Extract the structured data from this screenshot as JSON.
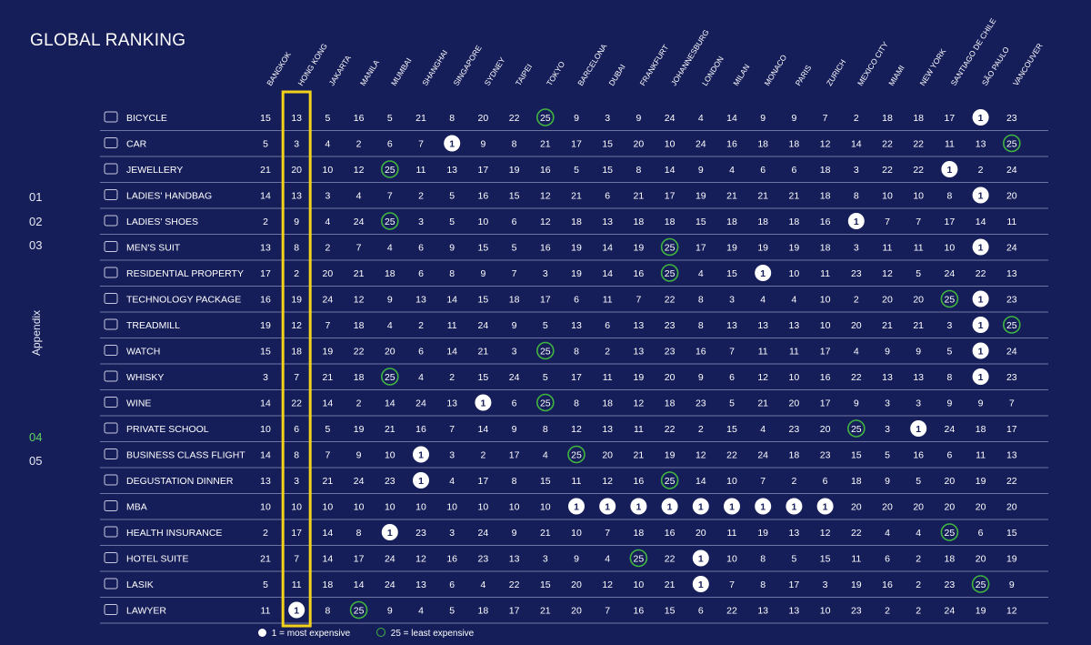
{
  "title": "GLOBAL RANKING",
  "side_nav": [
    {
      "label": "01",
      "active": false
    },
    {
      "label": "02",
      "active": false
    },
    {
      "label": "03",
      "active": false
    },
    {
      "label": "04",
      "active": true
    },
    {
      "label": "05",
      "active": false
    }
  ],
  "appendix_label": "Appendix",
  "colors": {
    "background": "#161e5a",
    "highlight": "#f2d11a",
    "least": "#3fb43f",
    "most": "#ffffff"
  },
  "legend": {
    "most": "1 = most expensive",
    "least": "25 = least expensive"
  },
  "chart_data": {
    "type": "table",
    "highlight_column": "HONG KONG",
    "columns": [
      "BANGKOK",
      "HONG KONG",
      "JAKARTA",
      "MANILA",
      "MUMBAI",
      "SHANGHAI",
      "SINGAPORE",
      "SYDNEY",
      "TAIPEI",
      "TOKYO",
      "BARCELONA",
      "DUBAI",
      "FRANKFURT",
      "JOHANNESBURG",
      "LONDON",
      "MILAN",
      "MONACO",
      "PARIS",
      "ZURICH",
      "MEXICO CITY",
      "MIAMI",
      "NEW YORK",
      "SANTIAGO DE CHILE",
      "SÃO PAULO",
      "VANCOUVER"
    ],
    "rows": [
      {
        "name": "BICYCLE",
        "icon": "bicycle-icon",
        "values": [
          15,
          13,
          5,
          16,
          5,
          21,
          8,
          20,
          22,
          25,
          9,
          3,
          9,
          24,
          4,
          14,
          9,
          9,
          7,
          2,
          18,
          18,
          17,
          1,
          23
        ]
      },
      {
        "name": "CAR",
        "icon": "car-icon",
        "values": [
          5,
          3,
          4,
          2,
          6,
          7,
          1,
          9,
          8,
          21,
          17,
          15,
          20,
          10,
          24,
          16,
          18,
          18,
          12,
          14,
          22,
          22,
          11,
          13,
          25
        ]
      },
      {
        "name": "JEWELLERY",
        "icon": "diamond-icon",
        "values": [
          21,
          20,
          10,
          12,
          25,
          11,
          13,
          17,
          19,
          16,
          5,
          15,
          8,
          14,
          9,
          4,
          6,
          6,
          18,
          3,
          22,
          22,
          1,
          2,
          24
        ]
      },
      {
        "name": "LADIES' HANDBAG",
        "icon": "handbag-icon",
        "values": [
          14,
          13,
          3,
          4,
          7,
          2,
          5,
          16,
          15,
          12,
          21,
          6,
          21,
          17,
          19,
          21,
          21,
          21,
          18,
          8,
          10,
          10,
          8,
          1,
          20
        ]
      },
      {
        "name": "LADIES' SHOES",
        "icon": "shoe-icon",
        "values": [
          2,
          9,
          4,
          24,
          25,
          3,
          5,
          10,
          6,
          12,
          18,
          13,
          18,
          18,
          15,
          18,
          18,
          18,
          16,
          1,
          7,
          7,
          17,
          14,
          11
        ]
      },
      {
        "name": "MEN'S SUIT",
        "icon": "suit-icon",
        "values": [
          13,
          8,
          2,
          7,
          4,
          6,
          9,
          15,
          5,
          16,
          19,
          14,
          19,
          25,
          17,
          19,
          19,
          19,
          18,
          3,
          11,
          11,
          10,
          1,
          24
        ]
      },
      {
        "name": "RESIDENTIAL PROPERTY",
        "icon": "building-icon",
        "values": [
          17,
          2,
          20,
          21,
          18,
          6,
          8,
          9,
          7,
          3,
          19,
          14,
          16,
          25,
          4,
          15,
          1,
          10,
          11,
          23,
          12,
          5,
          24,
          22,
          13
        ]
      },
      {
        "name": "TECHNOLOGY PACKAGE",
        "icon": "laptop-icon",
        "values": [
          16,
          19,
          24,
          12,
          9,
          13,
          14,
          15,
          18,
          17,
          6,
          11,
          7,
          22,
          8,
          3,
          4,
          4,
          10,
          2,
          20,
          20,
          25,
          1,
          23
        ]
      },
      {
        "name": "TREADMILL",
        "icon": "treadmill-icon",
        "values": [
          19,
          12,
          7,
          18,
          4,
          2,
          11,
          24,
          9,
          5,
          13,
          6,
          13,
          23,
          8,
          13,
          13,
          13,
          10,
          20,
          21,
          21,
          3,
          1,
          25
        ]
      },
      {
        "name": "WATCH",
        "icon": "watch-icon",
        "values": [
          15,
          18,
          19,
          22,
          20,
          6,
          14,
          21,
          3,
          25,
          8,
          2,
          13,
          23,
          16,
          7,
          11,
          11,
          17,
          4,
          9,
          9,
          5,
          1,
          24
        ]
      },
      {
        "name": "WHISKY",
        "icon": "whisky-icon",
        "values": [
          3,
          7,
          21,
          18,
          25,
          4,
          2,
          15,
          24,
          5,
          17,
          11,
          19,
          20,
          9,
          6,
          12,
          10,
          16,
          22,
          13,
          13,
          8,
          1,
          23
        ]
      },
      {
        "name": "WINE",
        "icon": "wine-icon",
        "values": [
          14,
          22,
          14,
          2,
          14,
          24,
          13,
          1,
          6,
          25,
          8,
          18,
          12,
          18,
          23,
          5,
          21,
          20,
          17,
          9,
          3,
          3,
          9,
          9,
          7
        ]
      },
      {
        "name": "PRIVATE SCHOOL",
        "icon": "school-icon",
        "values": [
          10,
          6,
          5,
          19,
          21,
          16,
          7,
          14,
          9,
          8,
          12,
          13,
          11,
          22,
          2,
          15,
          4,
          23,
          20,
          25,
          3,
          1,
          24,
          18,
          17
        ]
      },
      {
        "name": "BUSINESS CLASS FLIGHT",
        "icon": "plane-icon",
        "values": [
          14,
          8,
          7,
          9,
          10,
          1,
          3,
          2,
          17,
          4,
          25,
          20,
          21,
          19,
          12,
          22,
          24,
          18,
          23,
          15,
          5,
          16,
          6,
          11,
          13
        ]
      },
      {
        "name": "DEGUSTATION DINNER",
        "icon": "dinner-icon",
        "values": [
          13,
          3,
          21,
          24,
          23,
          1,
          4,
          17,
          8,
          15,
          11,
          12,
          16,
          25,
          14,
          10,
          7,
          2,
          6,
          18,
          9,
          5,
          20,
          19,
          22
        ]
      },
      {
        "name": "MBA",
        "icon": "graduation-cap-icon",
        "values": [
          10,
          10,
          10,
          10,
          10,
          10,
          10,
          10,
          10,
          10,
          1,
          1,
          1,
          1,
          1,
          1,
          1,
          1,
          1,
          20,
          20,
          20,
          20,
          20,
          20
        ]
      },
      {
        "name": "HEALTH INSURANCE",
        "icon": "heart-pulse-icon",
        "values": [
          2,
          17,
          14,
          8,
          1,
          23,
          3,
          24,
          9,
          21,
          10,
          7,
          18,
          16,
          20,
          11,
          19,
          13,
          12,
          22,
          4,
          4,
          25,
          6,
          15
        ]
      },
      {
        "name": "HOTEL SUITE",
        "icon": "hotel-icon",
        "values": [
          21,
          7,
          14,
          17,
          24,
          12,
          16,
          23,
          13,
          3,
          9,
          4,
          25,
          22,
          1,
          10,
          8,
          5,
          15,
          11,
          6,
          2,
          18,
          20,
          19
        ]
      },
      {
        "name": "LASIK",
        "icon": "eye-icon",
        "values": [
          5,
          11,
          18,
          14,
          24,
          13,
          6,
          4,
          22,
          15,
          20,
          12,
          10,
          21,
          1,
          7,
          8,
          17,
          3,
          19,
          16,
          2,
          23,
          25,
          9
        ]
      },
      {
        "name": "LAWYER",
        "icon": "lawyer-icon",
        "values": [
          11,
          1,
          8,
          25,
          9,
          4,
          5,
          18,
          17,
          21,
          20,
          7,
          16,
          15,
          6,
          22,
          13,
          13,
          10,
          23,
          2,
          2,
          24,
          19,
          12
        ]
      }
    ]
  }
}
